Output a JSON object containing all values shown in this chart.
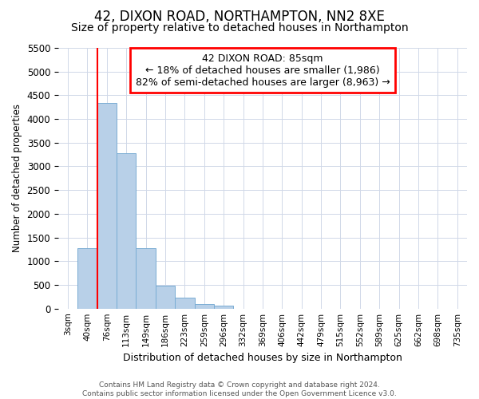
{
  "title": "42, DIXON ROAD, NORTHAMPTON, NN2 8XE",
  "subtitle": "Size of property relative to detached houses in Northampton",
  "xlabel": "Distribution of detached houses by size in Northampton",
  "ylabel": "Number of detached properties",
  "footer_line1": "Contains HM Land Registry data © Crown copyright and database right 2024.",
  "footer_line2": "Contains public sector information licensed under the Open Government Licence v3.0.",
  "annotation_title": "42 DIXON ROAD: 85sqm",
  "annotation_line2": "← 18% of detached houses are smaller (1,986)",
  "annotation_line3": "82% of semi-detached houses are larger (8,963) →",
  "bar_labels": [
    "3sqm",
    "40sqm",
    "76sqm",
    "113sqm",
    "149sqm",
    "186sqm",
    "223sqm",
    "259sqm",
    "296sqm",
    "332sqm",
    "369sqm",
    "406sqm",
    "442sqm",
    "479sqm",
    "515sqm",
    "552sqm",
    "589sqm",
    "625sqm",
    "662sqm",
    "698sqm",
    "735sqm"
  ],
  "bar_values": [
    0,
    1270,
    4330,
    3280,
    1280,
    480,
    230,
    95,
    65,
    0,
    0,
    0,
    0,
    0,
    0,
    0,
    0,
    0,
    0,
    0,
    0
  ],
  "bar_color": "#b8d0e8",
  "bar_edge_color": "#7aadd4",
  "redline_x": 2.0,
  "ylim": [
    0,
    5500
  ],
  "yticks": [
    0,
    500,
    1000,
    1500,
    2000,
    2500,
    3000,
    3500,
    4000,
    4500,
    5000,
    5500
  ],
  "grid_color": "#d0d8e8",
  "title_fontsize": 12,
  "subtitle_fontsize": 10,
  "annotation_fontsize": 9
}
